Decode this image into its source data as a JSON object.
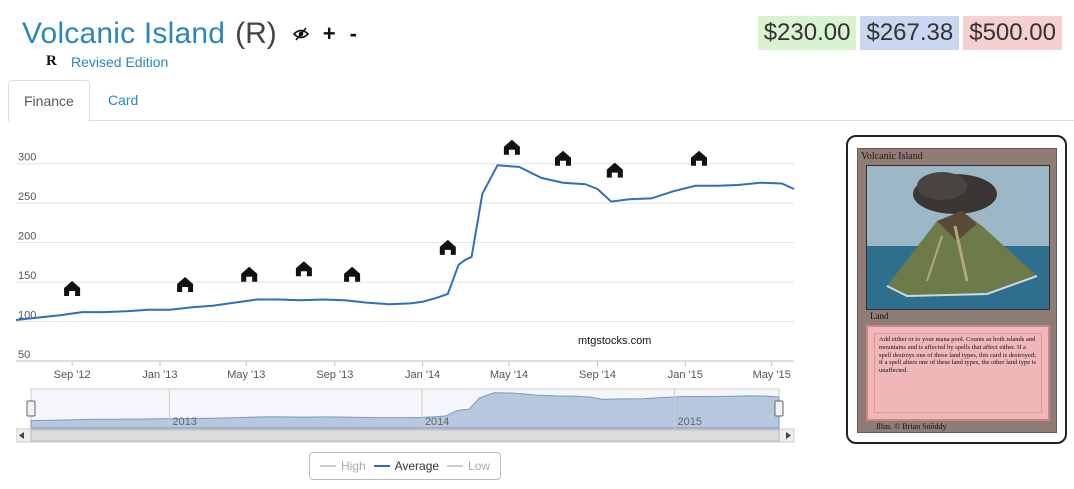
{
  "header": {
    "card_name": "Volcanic Island",
    "rarity": "(R)",
    "icons": [
      "eye-slash-icon",
      "plus-icon",
      "minus-icon"
    ],
    "plus_label": "+",
    "minus_label": "-"
  },
  "set": {
    "symbol": "R",
    "name": "Revised Edition"
  },
  "prices": {
    "low": "$230.00",
    "average": "$267.38",
    "high": "$500.00",
    "colors": {
      "low": "#d9f2d2",
      "average": "#c9d6f2",
      "high": "#f6cfcf"
    }
  },
  "tabs": [
    {
      "label": "Finance",
      "active": true
    },
    {
      "label": "Card",
      "active": false
    }
  ],
  "chart_data": {
    "type": "line",
    "ylim": [
      50,
      325
    ],
    "yticks": [
      "50",
      "100",
      "150",
      "200",
      "250",
      "300"
    ],
    "xticks": [
      "Sep '12",
      "Jan '13",
      "May '13",
      "Sep '13",
      "Jan '14",
      "May '14",
      "Sep '14",
      "Jan '15",
      "May '15"
    ],
    "navigator_labels": [
      "2013",
      "2014",
      "2015"
    ],
    "watermark": "mtgstocks.com",
    "legend": [
      "High",
      "Average",
      "Low"
    ],
    "legend_placement": "bottom-center",
    "series": [
      {
        "name": "Average",
        "color": "#2f6fbe",
        "x": [
          "2012-06-15",
          "2012-07-15",
          "2012-08-15",
          "2012-09-15",
          "2012-10-15",
          "2012-11-15",
          "2012-12-15",
          "2013-01-15",
          "2013-02-15",
          "2013-03-15",
          "2013-04-15",
          "2013-05-15",
          "2013-06-15",
          "2013-07-15",
          "2013-08-15",
          "2013-09-15",
          "2013-10-15",
          "2013-11-15",
          "2013-12-15",
          "2014-01-01",
          "2014-01-20",
          "2014-02-05",
          "2014-02-20",
          "2014-03-01",
          "2014-03-10",
          "2014-03-25",
          "2014-04-15",
          "2014-05-15",
          "2014-06-15",
          "2014-07-15",
          "2014-08-15",
          "2014-09-01",
          "2014-09-20",
          "2014-10-15",
          "2014-11-15",
          "2014-12-15",
          "2015-01-15",
          "2015-02-15",
          "2015-03-15",
          "2015-04-15",
          "2015-05-15",
          "2015-06-01"
        ],
        "values": [
          102,
          105,
          108,
          112,
          112,
          113,
          115,
          115,
          118,
          120,
          124,
          128,
          128,
          127,
          128,
          127,
          124,
          122,
          123,
          125,
          130,
          135,
          172,
          178,
          182,
          262,
          298,
          296,
          282,
          276,
          274,
          268,
          252,
          255,
          256,
          265,
          272,
          272,
          273,
          276,
          275,
          268
        ]
      }
    ],
    "event_markers": [
      {
        "date": "2012-09-01",
        "value": 140,
        "icon": "return-to-ravnica-set-icon"
      },
      {
        "date": "2013-02-05",
        "value": 145,
        "icon": "gatecrash-set-icon"
      },
      {
        "date": "2013-05-05",
        "value": 158,
        "icon": "dragons-maze-set-icon"
      },
      {
        "date": "2013-07-20",
        "value": 165,
        "icon": "m14-set-icon"
      },
      {
        "date": "2013-09-25",
        "value": 158,
        "icon": "theros-set-icon"
      },
      {
        "date": "2014-02-05",
        "value": 192,
        "icon": "born-of-the-gods-set-icon"
      },
      {
        "date": "2014-05-05",
        "value": 319,
        "icon": "journey-into-nyx-set-icon"
      },
      {
        "date": "2014-07-15",
        "value": 305,
        "icon": "m15-set-icon"
      },
      {
        "date": "2014-09-25",
        "value": 290,
        "icon": "khans-of-tarkir-set-icon"
      },
      {
        "date": "2015-01-20",
        "value": 305,
        "icon": "fate-reforged-set-icon"
      }
    ]
  },
  "card_image": {
    "title": "Volcanic Island",
    "type_line": "Land",
    "rules_text": "Add either or to your mana pool. Counts as both islands and mountains and is affected by spells that affect either. If a spell destroys one of these land types, this card is destroyed; if a spell alters one of these land types, the other land type is unaffected.",
    "artist": "Illus. © Brian Snõddy"
  }
}
